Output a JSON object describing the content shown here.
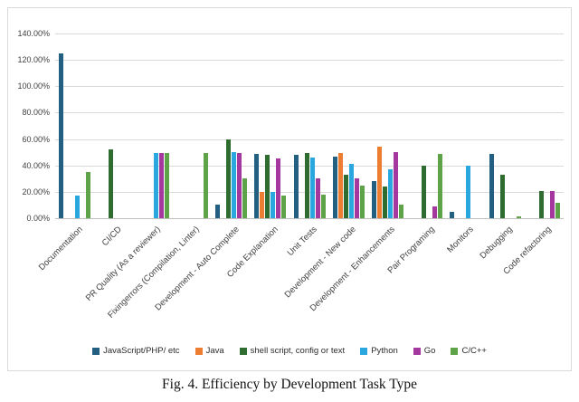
{
  "caption": "Fig. 4. Efficiency by Development Task Type",
  "chart_data": {
    "type": "bar",
    "title": "",
    "xlabel": "",
    "ylabel": "",
    "ylim": [
      0,
      140
    ],
    "ytick_step": 20,
    "yticks": [
      "0.00%",
      "20.00%",
      "40.00%",
      "60.00%",
      "80.00%",
      "100.00%",
      "120.00%",
      "140.00%"
    ],
    "grid": true,
    "legend_position": "bottom",
    "categories": [
      "Documentation",
      "CI/CD",
      "PR Quality (As a reviewer)",
      "Fixingerrors (Compilation, Linter)",
      "Development - Auto Complete",
      "Code Explanation",
      "Unit Tests",
      "Development - New code",
      "Development - Enhancements",
      "Pair Programing",
      "Monitors",
      "Debugging",
      "Code refactoring"
    ],
    "series": [
      {
        "name": "JavaScript/PHP/ etc",
        "color": "#235F80",
        "values": [
          125,
          0,
          0,
          0,
          10,
          49,
          48,
          47,
          28,
          0,
          4.5,
          49,
          0
        ]
      },
      {
        "name": "Java",
        "color": "#ED7D31",
        "values": [
          0,
          0,
          0,
          0,
          0,
          20,
          0,
          49.5,
          54,
          0,
          0,
          0,
          0
        ]
      },
      {
        "name": "shell script, config or text",
        "color": "#2F6C2F",
        "values": [
          0,
          52,
          0,
          0,
          60,
          48,
          49.5,
          33,
          24,
          40,
          0,
          33,
          20.5
        ]
      },
      {
        "name": "Python",
        "color": "#2BA7DF",
        "values": [
          17.5,
          0,
          49.5,
          0,
          50,
          20,
          46,
          41,
          37,
          0,
          40,
          0,
          0
        ]
      },
      {
        "name": "Go",
        "color": "#A4389E",
        "values": [
          0,
          0,
          49.5,
          0,
          49.5,
          45,
          30,
          30,
          50,
          9,
          0,
          0,
          20.5
        ]
      },
      {
        "name": "C/C++",
        "color": "#5EA348",
        "values": [
          35,
          0,
          49.5,
          49.5,
          30,
          17,
          18,
          24.5,
          10,
          49,
          0,
          1.5,
          12
        ]
      }
    ]
  }
}
